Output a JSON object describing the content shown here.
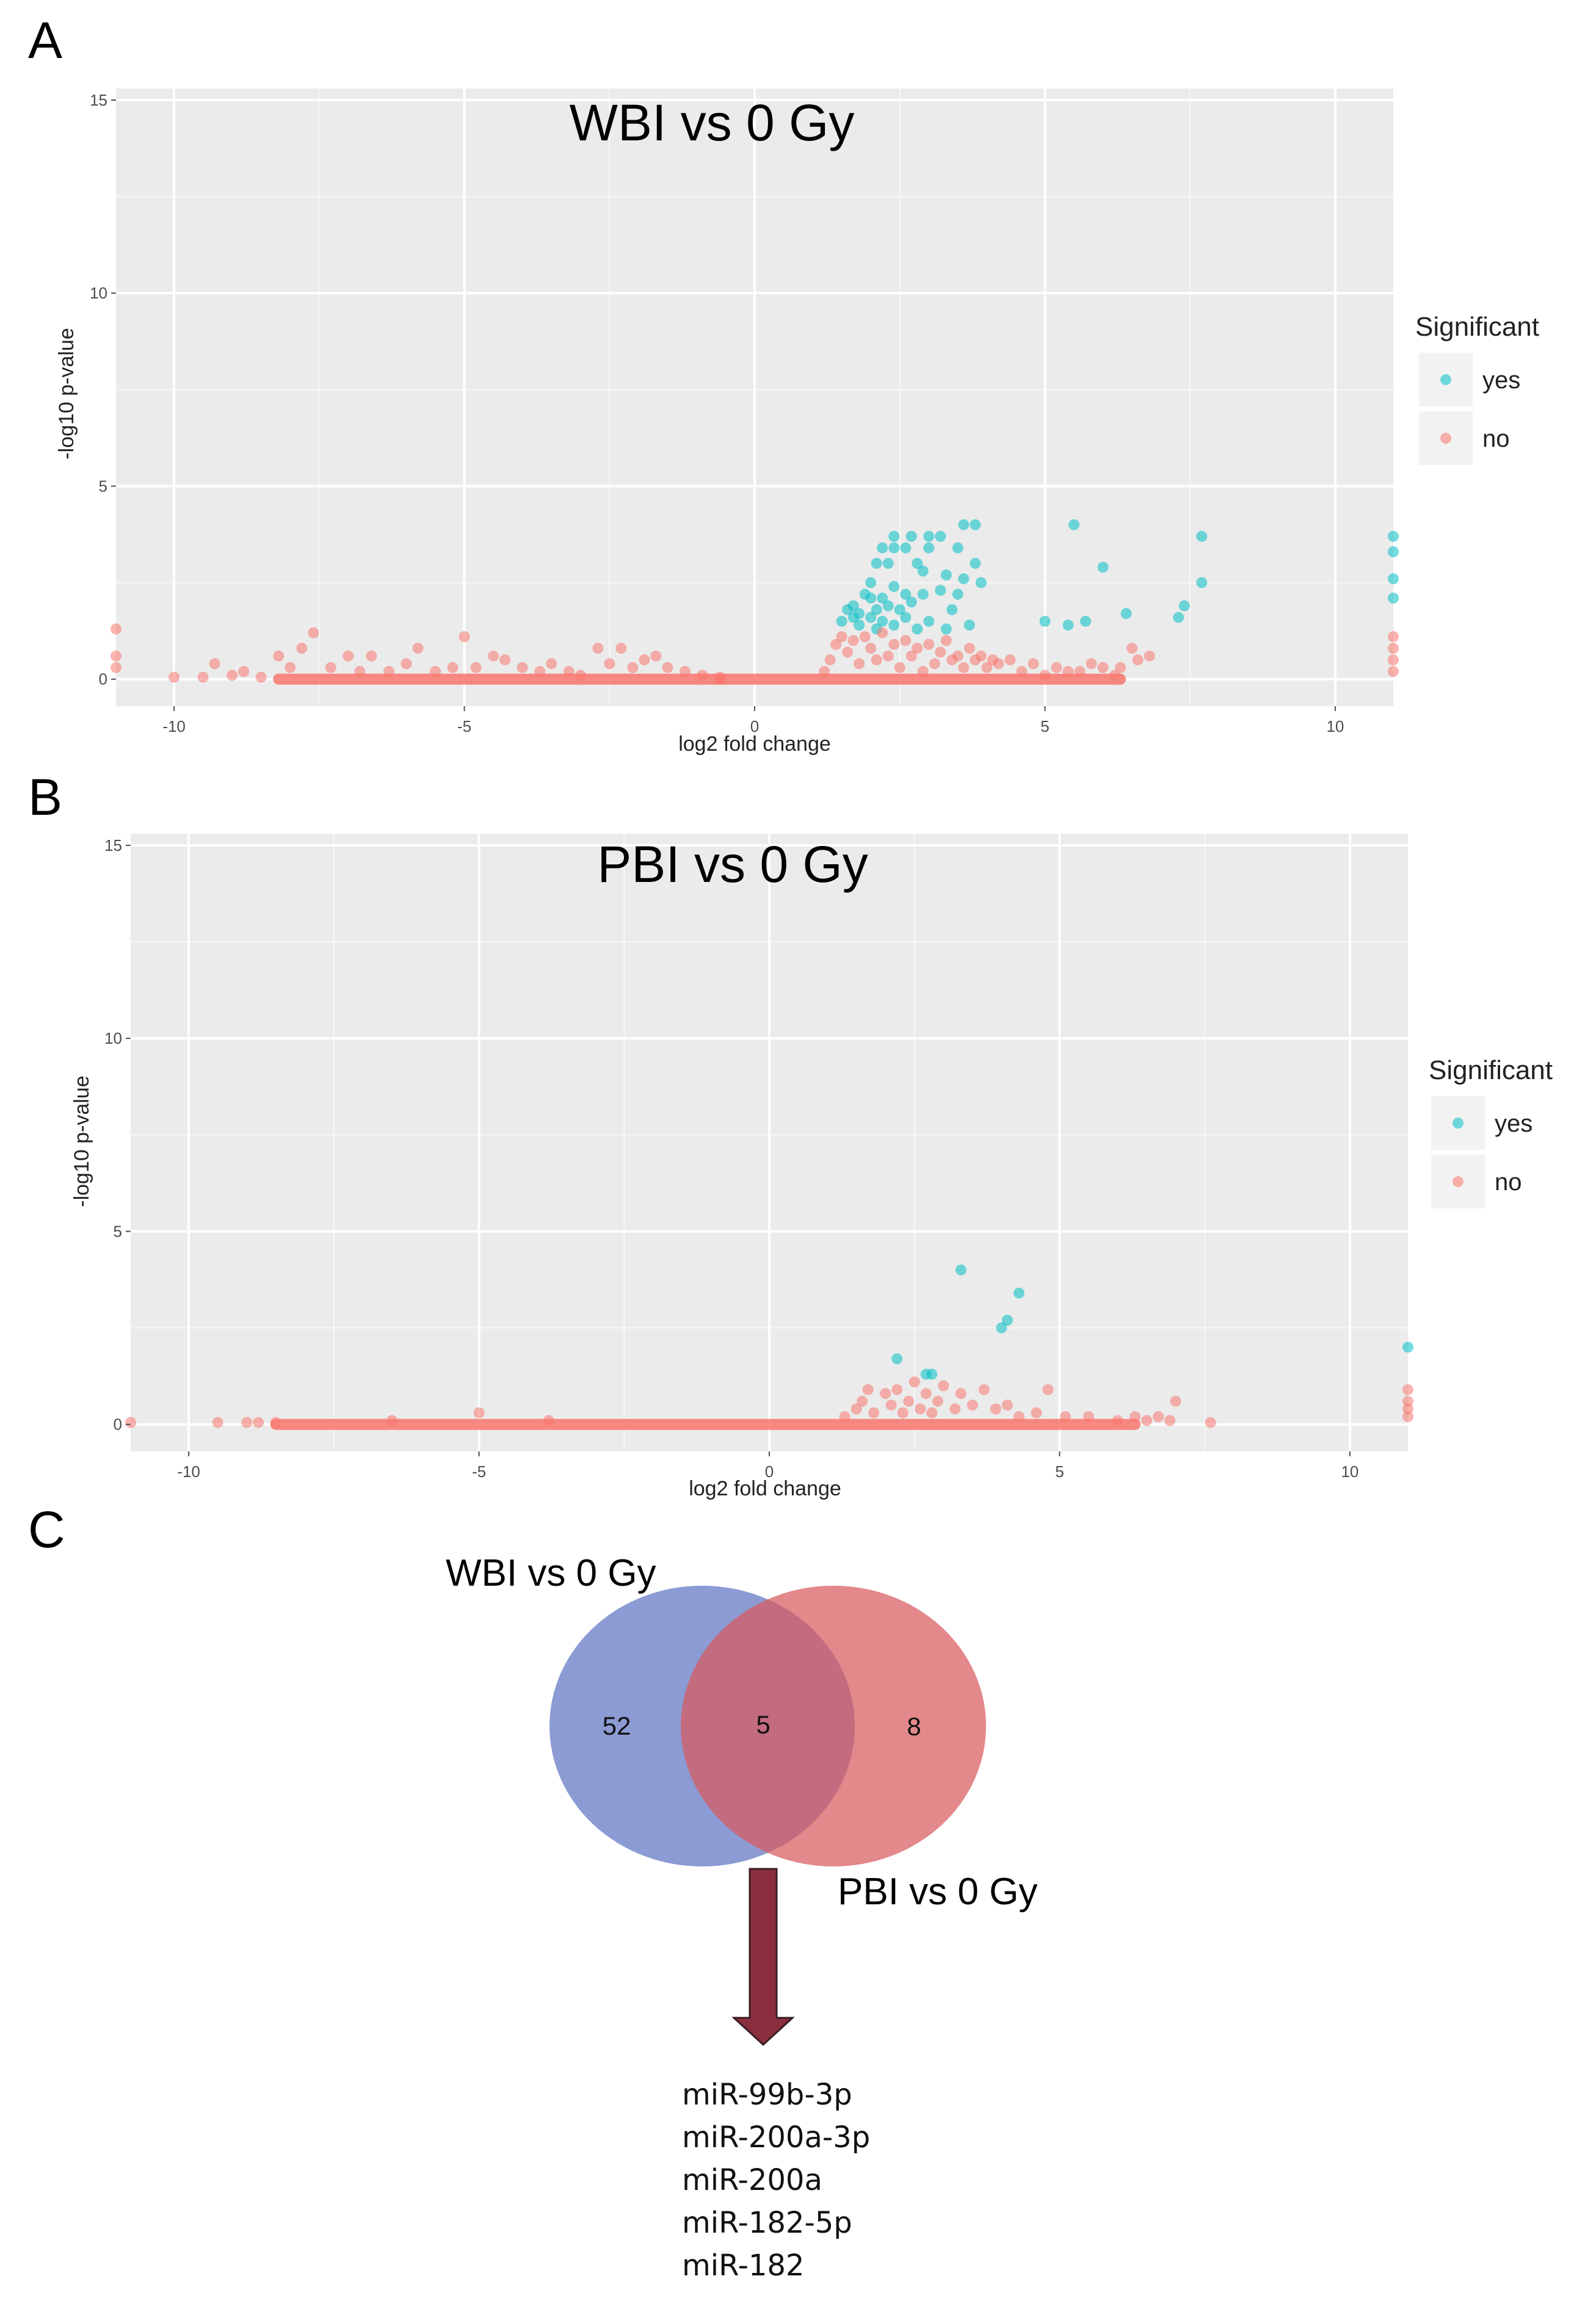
{
  "panels": {
    "a": "A",
    "b": "B",
    "c": "C"
  },
  "chart_data": [
    {
      "type": "scatter",
      "title": "WBI vs 0 Gy",
      "xlabel": "log2 fold change",
      "ylabel": "-log10 p-value",
      "xlim": [
        -11,
        11
      ],
      "ylim": [
        -0.7,
        15.3
      ],
      "xticks": [
        -10,
        -5,
        0,
        5,
        10
      ],
      "yticks": [
        0,
        5,
        10,
        15
      ],
      "legend": {
        "title": "Significant",
        "entries": [
          "yes",
          "no"
        ],
        "position": "right"
      },
      "colors": {
        "yes": "#00BFC4",
        "no": "#F8766D",
        "panel": "#EBEBEB",
        "grid": "#FFFFFF"
      },
      "series": [
        {
          "name": "yes",
          "points": [
            [
              2.4,
              3.7
            ],
            [
              2.7,
              3.7
            ],
            [
              3.0,
              3.7
            ],
            [
              3.2,
              3.7
            ],
            [
              3.6,
              4.0
            ],
            [
              3.8,
              4.0
            ],
            [
              5.5,
              4.0
            ],
            [
              7.7,
              3.7
            ],
            [
              2.2,
              3.4
            ],
            [
              2.4,
              3.4
            ],
            [
              2.6,
              3.4
            ],
            [
              3.0,
              3.4
            ],
            [
              3.5,
              3.4
            ],
            [
              2.1,
              3.0
            ],
            [
              2.3,
              3.0
            ],
            [
              2.8,
              3.0
            ],
            [
              3.8,
              3.0
            ],
            [
              6.0,
              2.9
            ],
            [
              2.9,
              2.8
            ],
            [
              3.3,
              2.7
            ],
            [
              3.6,
              2.6
            ],
            [
              7.7,
              2.5
            ],
            [
              2.0,
              2.5
            ],
            [
              2.4,
              2.4
            ],
            [
              3.9,
              2.5
            ],
            [
              1.9,
              2.2
            ],
            [
              2.0,
              2.1
            ],
            [
              2.2,
              2.1
            ],
            [
              2.6,
              2.2
            ],
            [
              2.9,
              2.2
            ],
            [
              3.2,
              2.3
            ],
            [
              3.5,
              2.2
            ],
            [
              7.4,
              1.9
            ],
            [
              1.6,
              1.8
            ],
            [
              1.7,
              1.9
            ],
            [
              1.8,
              1.7
            ],
            [
              2.1,
              1.8
            ],
            [
              2.3,
              1.9
            ],
            [
              2.5,
              1.8
            ],
            [
              2.7,
              2.0
            ],
            [
              3.4,
              1.8
            ],
            [
              6.4,
              1.7
            ],
            [
              7.3,
              1.6
            ],
            [
              1.5,
              1.5
            ],
            [
              1.7,
              1.6
            ],
            [
              2.0,
              1.6
            ],
            [
              2.2,
              1.5
            ],
            [
              2.4,
              1.4
            ],
            [
              2.6,
              1.6
            ],
            [
              3.0,
              1.5
            ],
            [
              3.7,
              1.4
            ],
            [
              5.0,
              1.5
            ],
            [
              1.8,
              1.4
            ],
            [
              2.1,
              1.3
            ],
            [
              2.8,
              1.3
            ],
            [
              3.3,
              1.3
            ],
            [
              5.4,
              1.4
            ],
            [
              5.7,
              1.5
            ],
            [
              11,
              3.7
            ],
            [
              11,
              3.3
            ],
            [
              11,
              2.6
            ],
            [
              11,
              2.1
            ]
          ]
        },
        {
          "name": "no",
          "points": [
            [
              -11,
              1.3
            ],
            [
              -11,
              0.6
            ],
            [
              -11,
              0.3
            ],
            [
              -10,
              0.05
            ],
            [
              -9.5,
              0.05
            ],
            [
              -9.3,
              0.4
            ],
            [
              -9.0,
              0.1
            ],
            [
              -8.8,
              0.2
            ],
            [
              -8.5,
              0.05
            ],
            [
              -8.2,
              0.6
            ],
            [
              -8.0,
              0.3
            ],
            [
              -7.8,
              0.8
            ],
            [
              -7.6,
              1.2
            ],
            [
              -7.3,
              0.3
            ],
            [
              -7.0,
              0.6
            ],
            [
              -6.8,
              0.2
            ],
            [
              -6.6,
              0.6
            ],
            [
              -6.3,
              0.2
            ],
            [
              -6.0,
              0.4
            ],
            [
              -5.8,
              0.8
            ],
            [
              -5.5,
              0.2
            ],
            [
              -5.2,
              0.3
            ],
            [
              -5.0,
              1.1
            ],
            [
              -4.8,
              0.3
            ],
            [
              -4.5,
              0.6
            ],
            [
              -4.3,
              0.5
            ],
            [
              -4.0,
              0.3
            ],
            [
              -3.7,
              0.2
            ],
            [
              -3.5,
              0.4
            ],
            [
              -3.2,
              0.2
            ],
            [
              -3.0,
              0.1
            ],
            [
              -2.7,
              0.8
            ],
            [
              -2.5,
              0.4
            ],
            [
              -2.3,
              0.8
            ],
            [
              -2.1,
              0.3
            ],
            [
              -1.9,
              0.5
            ],
            [
              -1.7,
              0.6
            ],
            [
              -1.5,
              0.3
            ],
            [
              -1.2,
              0.2
            ],
            [
              -0.9,
              0.1
            ],
            [
              -0.6,
              0.05
            ],
            [
              1.2,
              0.2
            ],
            [
              1.3,
              0.5
            ],
            [
              1.4,
              0.9
            ],
            [
              1.5,
              1.1
            ],
            [
              1.6,
              0.7
            ],
            [
              1.7,
              1.0
            ],
            [
              1.8,
              0.4
            ],
            [
              1.9,
              1.1
            ],
            [
              2.0,
              0.8
            ],
            [
              2.1,
              0.5
            ],
            [
              2.2,
              1.2
            ],
            [
              2.3,
              0.6
            ],
            [
              2.4,
              0.9
            ],
            [
              2.5,
              0.3
            ],
            [
              2.6,
              1.0
            ],
            [
              2.7,
              0.6
            ],
            [
              2.8,
              0.8
            ],
            [
              2.9,
              0.2
            ],
            [
              3.0,
              0.9
            ],
            [
              3.1,
              0.4
            ],
            [
              3.2,
              0.7
            ],
            [
              3.3,
              1.0
            ],
            [
              3.4,
              0.5
            ],
            [
              3.5,
              0.6
            ],
            [
              3.6,
              0.3
            ],
            [
              3.7,
              0.8
            ],
            [
              3.8,
              0.5
            ],
            [
              3.9,
              0.6
            ],
            [
              4.0,
              0.3
            ],
            [
              4.1,
              0.5
            ],
            [
              4.2,
              0.4
            ],
            [
              4.4,
              0.5
            ],
            [
              4.6,
              0.2
            ],
            [
              4.8,
              0.4
            ],
            [
              5.0,
              0.1
            ],
            [
              5.2,
              0.3
            ],
            [
              5.4,
              0.2
            ],
            [
              5.6,
              0.2
            ],
            [
              5.8,
              0.4
            ],
            [
              6.0,
              0.3
            ],
            [
              6.2,
              0.1
            ],
            [
              6.3,
              0.3
            ],
            [
              6.5,
              0.8
            ],
            [
              6.6,
              0.5
            ],
            [
              6.8,
              0.6
            ],
            [
              11,
              1.1
            ],
            [
              11,
              0.8
            ],
            [
              11,
              0.5
            ],
            [
              11,
              0.2
            ]
          ]
        }
      ],
      "baseline": {
        "value": 0,
        "x_ranges": [
          [
            -8.2,
            -0.6
          ],
          [
            -0.6,
            6.3
          ]
        ]
      }
    },
    {
      "type": "scatter",
      "title": "PBI vs 0 Gy",
      "xlabel": "log2 fold change",
      "ylabel": "-log10 p-value",
      "xlim": [
        -11,
        11
      ],
      "ylim": [
        -0.7,
        15.3
      ],
      "xticks": [
        -10,
        -5,
        0,
        5,
        10
      ],
      "yticks": [
        0,
        5,
        10,
        15
      ],
      "legend": {
        "title": "Significant",
        "entries": [
          "yes",
          "no"
        ],
        "position": "right"
      },
      "colors": {
        "yes": "#00BFC4",
        "no": "#F8766D",
        "panel": "#EBEBEB",
        "grid": "#FFFFFF"
      },
      "series": [
        {
          "name": "yes",
          "points": [
            [
              3.3,
              4.0
            ],
            [
              4.3,
              3.4
            ],
            [
              4.1,
              2.7
            ],
            [
              4.0,
              2.5
            ],
            [
              2.2,
              1.7
            ],
            [
              2.7,
              1.3
            ],
            [
              2.8,
              1.3
            ],
            [
              11,
              2.0
            ]
          ]
        },
        {
          "name": "no",
          "points": [
            [
              -11,
              0.05
            ],
            [
              -9.5,
              0.05
            ],
            [
              -9.0,
              0.05
            ],
            [
              -8.8,
              0.05
            ],
            [
              -8.5,
              0.05
            ],
            [
              -6.5,
              0.1
            ],
            [
              -5.0,
              0.3
            ],
            [
              -3.8,
              0.1
            ],
            [
              1.3,
              0.2
            ],
            [
              1.5,
              0.4
            ],
            [
              1.6,
              0.6
            ],
            [
              1.7,
              0.9
            ],
            [
              1.8,
              0.3
            ],
            [
              2.0,
              0.8
            ],
            [
              2.1,
              0.5
            ],
            [
              2.2,
              0.9
            ],
            [
              2.3,
              0.3
            ],
            [
              2.4,
              0.6
            ],
            [
              2.5,
              1.1
            ],
            [
              2.6,
              0.4
            ],
            [
              2.7,
              0.8
            ],
            [
              2.8,
              0.3
            ],
            [
              2.9,
              0.6
            ],
            [
              3.0,
              1.0
            ],
            [
              3.2,
              0.4
            ],
            [
              3.3,
              0.8
            ],
            [
              3.5,
              0.5
            ],
            [
              3.7,
              0.9
            ],
            [
              3.9,
              0.4
            ],
            [
              4.1,
              0.5
            ],
            [
              4.3,
              0.2
            ],
            [
              4.6,
              0.3
            ],
            [
              4.8,
              0.9
            ],
            [
              5.1,
              0.2
            ],
            [
              5.5,
              0.2
            ],
            [
              6.0,
              0.1
            ],
            [
              6.3,
              0.2
            ],
            [
              6.5,
              0.1
            ],
            [
              6.7,
              0.2
            ],
            [
              6.9,
              0.1
            ],
            [
              7.0,
              0.6
            ],
            [
              7.6,
              0.05
            ],
            [
              11,
              0.9
            ],
            [
              11,
              0.6
            ],
            [
              11,
              0.4
            ],
            [
              11,
              0.2
            ]
          ]
        }
      ],
      "baseline": {
        "value": 0,
        "x_ranges": [
          [
            -8.5,
            6.3
          ]
        ]
      }
    }
  ],
  "venn": {
    "left_label": "WBI vs 0 Gy",
    "right_label": "PBI vs 0 Gy",
    "left_only": "52",
    "overlap": "5",
    "right_only": "8",
    "left_color": "#6B7FC8",
    "right_color": "#D85A5E",
    "arrow_color": "#8B2E3E",
    "mirnas": [
      "miR-99b-3p",
      "miR-200a-3p",
      "miR-200a",
      "miR-182-5p",
      "miR-182"
    ]
  }
}
